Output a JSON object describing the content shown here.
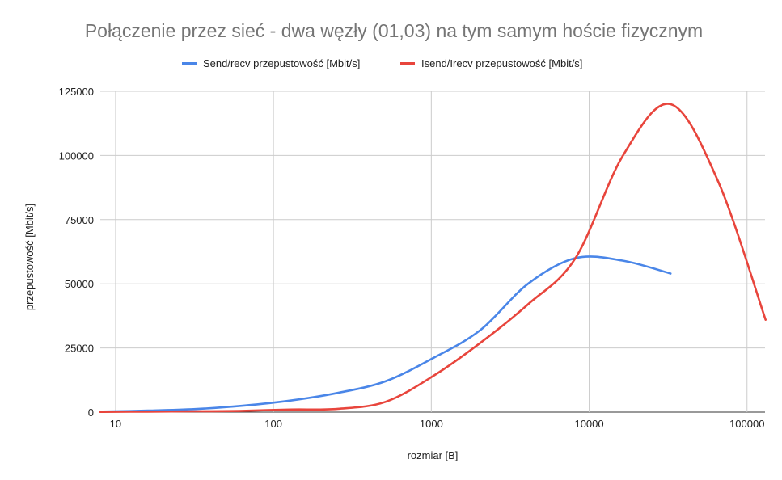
{
  "chart_data": {
    "type": "line",
    "title": "Połączenie przez sieć - dwa węzły (01,03) na tym samym hoście fizycznym",
    "xlabel": "rozmiar [B]",
    "ylabel": "przepustowość [Mbit/s]",
    "x_scale": "log",
    "xlim": [
      8,
      130000
    ],
    "ylim": [
      0,
      125000
    ],
    "x_ticks": [
      10,
      100,
      1000,
      10000,
      100000
    ],
    "x_tick_labels": [
      "10",
      "100",
      "1000",
      "10000",
      "100000"
    ],
    "y_ticks": [
      0,
      25000,
      50000,
      75000,
      100000,
      125000
    ],
    "y_tick_labels": [
      "0",
      "25000",
      "50000",
      "75000",
      "100000",
      "125000"
    ],
    "grid": true,
    "legend_position": "top",
    "series": [
      {
        "name": "Send/recv przepustowość [Mbit/s]",
        "color": "#4a86e8",
        "x": [
          8,
          16,
          32,
          64,
          128,
          256,
          512,
          1024,
          2048,
          4096,
          8192,
          16384,
          32768
        ],
        "y": [
          200,
          600,
          1200,
          2500,
          4500,
          7500,
          12000,
          21000,
          32000,
          50000,
          60000,
          59000,
          54000
        ]
      },
      {
        "name": "Isend/Irecv przepustowość [Mbit/s]",
        "color": "#e8453c",
        "x": [
          8,
          16,
          32,
          64,
          128,
          256,
          512,
          1024,
          2048,
          4096,
          8192,
          16384,
          32768,
          65536,
          131072
        ],
        "y": [
          100,
          200,
          300,
          500,
          1000,
          1300,
          4000,
          14000,
          27000,
          42000,
          60000,
          100000,
          120000,
          90000,
          36000
        ]
      }
    ]
  }
}
